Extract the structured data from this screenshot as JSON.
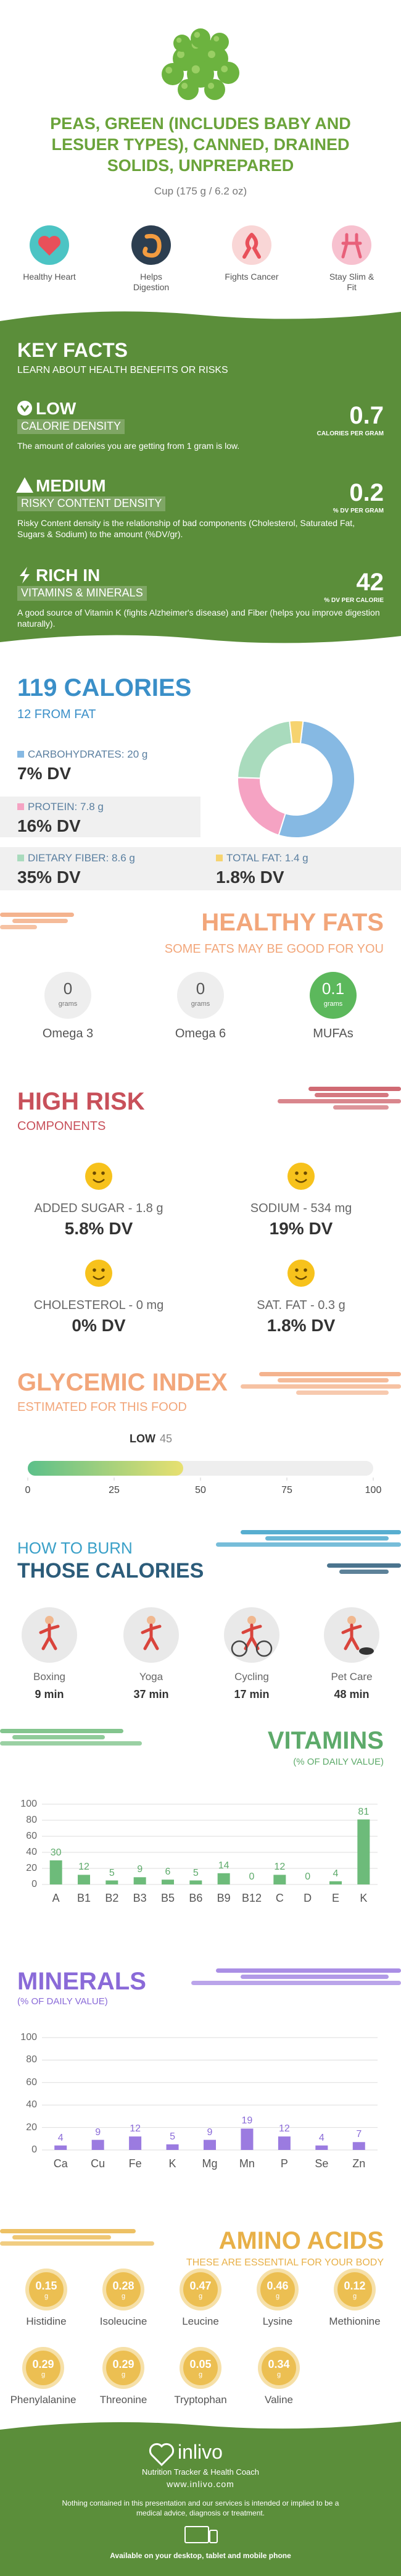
{
  "header": {
    "title": "PEAS, GREEN (INCLUDES BABY AND LESUER TYPES), CANNED, DRAINED SOLIDS, UNPREPARED",
    "serving": "Cup (175 g / 6.2 oz)"
  },
  "benefits": [
    "Healthy Heart",
    "Helps Digestion",
    "Fights Cancer",
    "Stay Slim & Fit"
  ],
  "key_facts": {
    "title": "KEY FACTS",
    "subtitle": "LEARN ABOUT HEALTH BENEFITS OR RISKS",
    "items": [
      {
        "level": "LOW",
        "label": "CALORIE DENSITY",
        "value": 0.7,
        "unit": "CALORIES PER GRAM",
        "text": "The amount of calories you are getting from 1 gram is low."
      },
      {
        "level": "MEDIUM",
        "label": "RISKY CONTENT DENSITY",
        "value": 0.2,
        "unit": "% DV PER GRAM",
        "text": "Risky Content density is the relationship of bad components (Cholesterol, Saturated Fat, Sugars & Sodium) to the amount (%DV/gr)."
      },
      {
        "level": "RICH  IN",
        "label": "VITAMINS & MINERALS",
        "value": 42,
        "unit": "% DV PER CALORIE",
        "text": "A good source of Vitamin K (fights Alzheimer's disease) and Fiber (helps you improve digestion naturally)."
      }
    ]
  },
  "calories": {
    "title": "119 CALORIES",
    "subtitle": "12 FROM FAT",
    "nutrients": [
      {
        "name": "CARBOHYDRATES:",
        "amount": 20,
        "unit": "g",
        "dv": "7% DV",
        "color": "#86b9e3"
      },
      {
        "name": "PROTEIN:",
        "amount": 7.8,
        "unit": "g",
        "dv": "16% DV",
        "color": "#f5a3c3"
      },
      {
        "name": "DIETARY FIBER:",
        "amount": 8.6,
        "unit": "g",
        "dv": "35% DV",
        "color": "#a9dbbd"
      },
      {
        "name": "TOTAL FAT:",
        "amount": 1.4,
        "unit": "g",
        "dv": "1.8% DV",
        "color": "#f6d36f"
      }
    ]
  },
  "healthy_fats": {
    "title": "HEALTHY FATS",
    "subtitle": "SOME FATS MAY BE GOOD FOR YOU",
    "items": [
      {
        "name": "Omega 3",
        "value": 0,
        "unit": "grams",
        "color": "#eeeeee"
      },
      {
        "name": "Omega 6",
        "value": 0,
        "unit": "grams",
        "color": "#eeeeee"
      },
      {
        "name": "MUFAs",
        "value": 0.1,
        "unit": "grams",
        "color": "#5cb85c"
      }
    ]
  },
  "high_risk": {
    "title": "HIGH RISK",
    "subtitle": "COMPONENTS",
    "items": [
      {
        "name": "ADDED SUGAR -",
        "amount": 1.8,
        "unit": "g",
        "dv": "5.8% DV"
      },
      {
        "name": "SODIUM -",
        "amount": 534,
        "unit": "mg",
        "dv": "19% DV"
      },
      {
        "name": "CHOLESTEROL -",
        "amount": 0,
        "unit": "mg",
        "dv": "0% DV"
      },
      {
        "name": "SAT. FAT -",
        "amount": 0.3,
        "unit": "g",
        "dv": "1.8% DV"
      }
    ]
  },
  "glycemic": {
    "title": "GLYCEMIC INDEX",
    "subtitle": "ESTIMATED FOR THIS FOOD",
    "level": "LOW",
    "value": 45,
    "xlim": [
      0,
      100
    ],
    "xticks": [
      0,
      25,
      50,
      75,
      100
    ]
  },
  "burn": {
    "title_1": "HOW TO BURN",
    "title_2": "THOSE CALORIES",
    "activities": [
      {
        "name": "Boxing",
        "minutes": 9,
        "unit": "min"
      },
      {
        "name": "Yoga",
        "minutes": 37,
        "unit": "min"
      },
      {
        "name": "Cycling",
        "minutes": 17,
        "unit": "min"
      },
      {
        "name": "Pet Care",
        "minutes": 48,
        "unit": "min"
      }
    ]
  },
  "vitamins": {
    "type": "bar",
    "title": "VITAMINS",
    "subtitle": "(% OF DAILY VALUE)",
    "categories": [
      "A",
      "B1",
      "B2",
      "B3",
      "B5",
      "B6",
      "B9",
      "B12",
      "C",
      "D",
      "E",
      "K"
    ],
    "values": [
      30,
      12,
      5,
      9,
      6,
      5,
      14,
      0,
      12,
      0,
      4,
      81
    ],
    "color": "#6dbb7a",
    "ylim": [
      0,
      100
    ],
    "yticks": [
      0,
      20,
      40,
      60,
      80,
      100
    ],
    "grid": true
  },
  "minerals": {
    "type": "bar",
    "title": "MINERALS",
    "subtitle": "(% OF DAILY VALUE)",
    "categories": [
      "Ca",
      "Cu",
      "Fe",
      "K",
      "Mg",
      "Mn",
      "P",
      "Se",
      "Zn"
    ],
    "values": [
      4,
      9,
      12,
      5,
      9,
      19,
      12,
      4,
      7
    ],
    "color": "#9b7be0",
    "ylim": [
      0,
      100
    ],
    "yticks": [
      0,
      20,
      40,
      60,
      80,
      100
    ],
    "grid": true
  },
  "amino_acids": {
    "title": "AMINO ACIDS",
    "subtitle": "THESE ARE ESSENTIAL FOR YOUR BODY",
    "unit": "g",
    "items": [
      {
        "name": "Histidine",
        "value": 0.15
      },
      {
        "name": "Isoleucine",
        "value": 0.28
      },
      {
        "name": "Leucine",
        "value": 0.47
      },
      {
        "name": "Lysine",
        "value": 0.46
      },
      {
        "name": "Methionine",
        "value": 0.12
      },
      {
        "name": "Phenylalanine",
        "value": 0.29
      },
      {
        "name": "Threonine",
        "value": 0.29
      },
      {
        "name": "Tryptophan",
        "value": 0.05
      },
      {
        "name": "Valine",
        "value": 0.34
      }
    ]
  },
  "footer": {
    "brand": "inlivo",
    "tagline": "Nutrition Tracker & Health Coach",
    "url": "www.inlivo.com",
    "disclaimer": "Nothing contained in this presentation and our services is intended or implied to be a medical advice, diagnosis or treatment.",
    "availability": "Available on your desktop, tablet and mobile phone"
  }
}
